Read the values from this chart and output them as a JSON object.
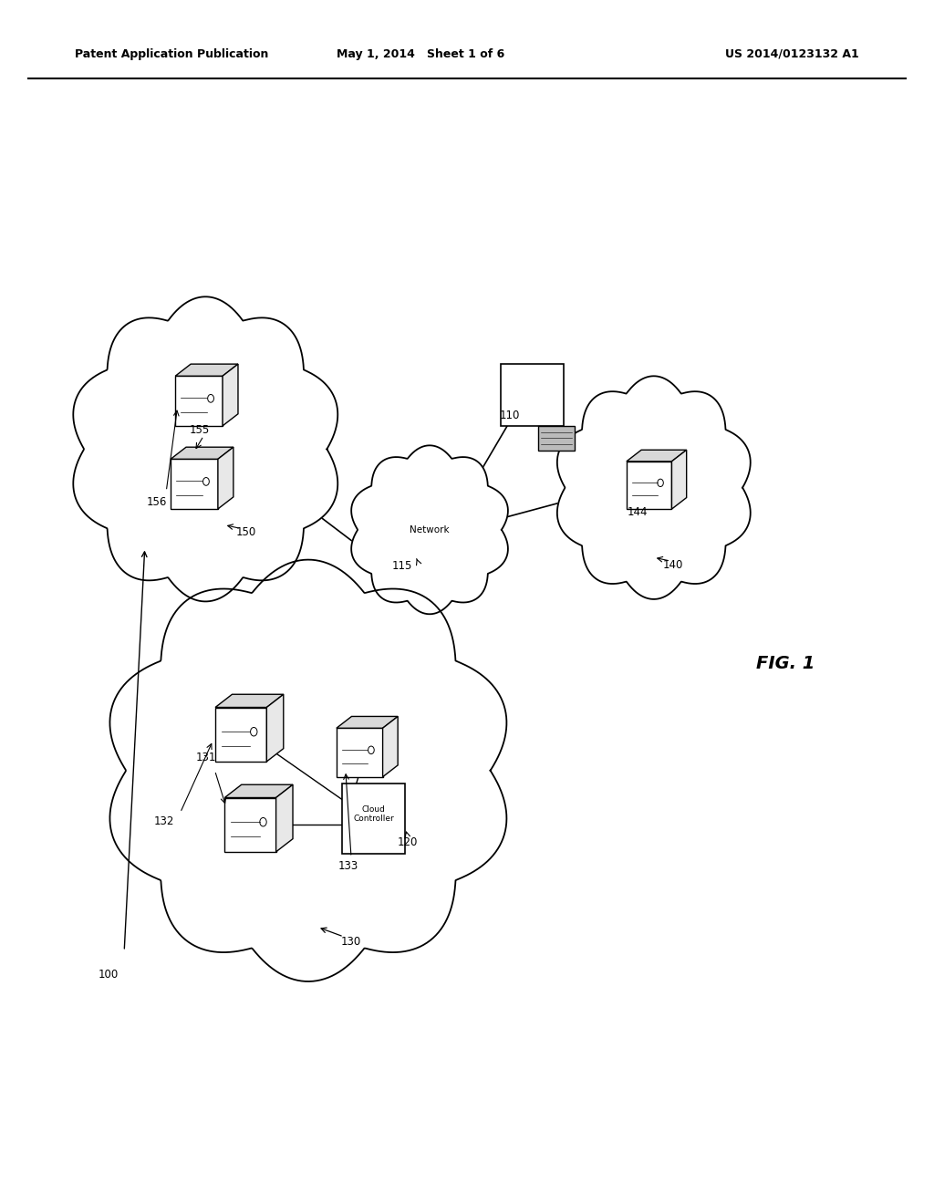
{
  "bg_color": "#ffffff",
  "header_left": "Patent Application Publication",
  "header_center": "May 1, 2014   Sheet 1 of 6",
  "header_right": "US 2014/0123132 A1",
  "fig_label": "FIG. 1"
}
